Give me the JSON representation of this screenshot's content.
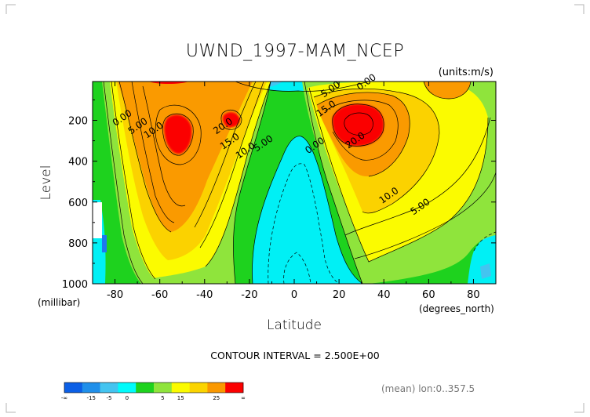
{
  "chart_data": {
    "type": "contour",
    "title": "UWND_1997-MAM_NCEP",
    "units_label": "(units:m/s)",
    "xlabel": "Latitude",
    "xunit": "(degrees_north)",
    "ylabel": "Level",
    "yunit": "(millibar)",
    "xlim": [
      -90,
      90
    ],
    "ylim": [
      1000,
      10
    ],
    "x_ticks": [
      "-80",
      "-60",
      "-40",
      "-20",
      "0",
      "20",
      "40",
      "60",
      "80"
    ],
    "x_tick_values": [
      -80,
      -60,
      -40,
      -20,
      0,
      20,
      40,
      60,
      80
    ],
    "y_ticks": [
      "200",
      "400",
      "600",
      "800",
      "1000"
    ],
    "y_tick_values": [
      200,
      400,
      600,
      800,
      1000
    ],
    "contour_interval": 2.5,
    "contour_interval_text": "CONTOUR INTERVAL = 2.500E+00",
    "contour_labels": [
      {
        "text": "0.00",
        "x": -76,
        "y": 185
      },
      {
        "text": "5.00",
        "x": -69,
        "y": 225
      },
      {
        "text": "10.0",
        "x": -62,
        "y": 245
      },
      {
        "text": "20.0",
        "x": -31,
        "y": 225
      },
      {
        "text": "15.0",
        "x": -28,
        "y": 300
      },
      {
        "text": "10.0",
        "x": -21,
        "y": 345
      },
      {
        "text": "5.00",
        "x": -13,
        "y": 310
      },
      {
        "text": "0.00",
        "x": 10,
        "y": 320
      },
      {
        "text": "5.00",
        "x": 17,
        "y": 45
      },
      {
        "text": "0.00",
        "x": 33,
        "y": -10
      },
      {
        "text": "15.0",
        "x": 15,
        "y": 140
      },
      {
        "text": "20.0",
        "x": 28,
        "y": 295
      },
      {
        "text": "10.0",
        "x": 43,
        "y": 565
      },
      {
        "text": "5.00",
        "x": 57,
        "y": 620
      }
    ],
    "maxima": [
      {
        "lat": 28,
        "level": 190,
        "value": 30
      },
      {
        "lat": -56,
        "level": 230,
        "value": 27.5
      },
      {
        "lat": -28,
        "level": 190,
        "value": 26
      }
    ],
    "colorbar": {
      "tick_labels": [
        "-∞",
        "-15",
        "-5",
        "0",
        "5",
        "15",
        "25",
        "∞"
      ],
      "colors": [
        "#0b5fe6",
        "#1f8fea",
        "#43c4f0",
        "#00fbfb",
        "#1ed21e",
        "#8fe43c",
        "#fbfb00",
        "#fbd400",
        "#fa9800",
        "#fb0000"
      ]
    },
    "colors": {
      "neg_strong": "#1e78f0",
      "neg": "#43c4f0",
      "cyan": "#00f0f5",
      "green": "#1ed21e",
      "lightgreen": "#8fe43c",
      "yellow": "#fbfb00",
      "gold": "#fbd200",
      "orange": "#fa9a00",
      "red": "#fb0000"
    }
  },
  "footer": {
    "mean_text": "(mean) lon:0..357.5"
  }
}
